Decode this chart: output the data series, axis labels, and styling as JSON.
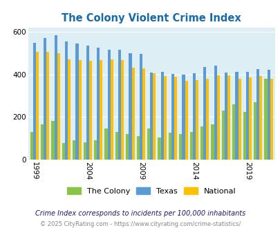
{
  "title": "The Colony Violent Crime Index",
  "years": [
    1999,
    2000,
    2001,
    2002,
    2003,
    2004,
    2005,
    2006,
    2007,
    2008,
    2009,
    2010,
    2011,
    2012,
    2013,
    2014,
    2015,
    2016,
    2017,
    2018,
    2019,
    2020,
    2021
  ],
  "colony": [
    130,
    165,
    182,
    78,
    90,
    80,
    90,
    145,
    128,
    120,
    110,
    145,
    105,
    125,
    120,
    130,
    155,
    165,
    230,
    260,
    225,
    270,
    380
  ],
  "texas": [
    548,
    570,
    582,
    555,
    545,
    535,
    525,
    515,
    515,
    498,
    495,
    408,
    410,
    402,
    400,
    405,
    435,
    440,
    408,
    410,
    410,
    425,
    420
  ],
  "national": [
    505,
    505,
    500,
    470,
    465,
    462,
    468,
    470,
    465,
    430,
    428,
    405,
    392,
    388,
    368,
    374,
    380,
    395,
    394,
    380,
    384,
    393,
    380
  ],
  "colony_color": "#8bc34a",
  "texas_color": "#5b9bd5",
  "national_color": "#ffc000",
  "bg_color": "#ddeef5",
  "ylim": [
    0,
    620
  ],
  "yticks": [
    0,
    200,
    400,
    600
  ],
  "footnote1": "Crime Index corresponds to incidents per 100,000 inhabitants",
  "footnote2": "© 2025 CityRating.com - https://www.cityrating.com/crime-statistics/",
  "legend_labels": [
    "The Colony",
    "Texas",
    "National"
  ],
  "xtick_years": [
    1999,
    2004,
    2009,
    2014,
    2019
  ]
}
